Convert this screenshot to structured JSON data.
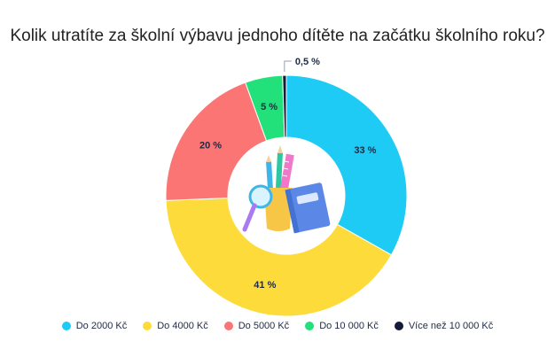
{
  "chart_data": {
    "type": "pie",
    "title": "Kolik utratíte za školní výbavu jednoho dítěte na začátku školního roku?",
    "donut": true,
    "categories": [
      "Do 2000 Kč",
      "Do 4000 Kč",
      "Do 5000 Kč",
      "Do 10 000 Kč",
      "Více než 10 000 Kč"
    ],
    "values": [
      33,
      41,
      20,
      5,
      0.5
    ],
    "data_labels": [
      "33 %",
      "41 %",
      "20 %",
      "5 %",
      "0,5 %"
    ],
    "colors": [
      "#1dcbf5",
      "#fddb3a",
      "#fb7575",
      "#22e07a",
      "#141a3a"
    ],
    "legend": "bottom",
    "center_image": "school-supplies-cup-with-pencils-ruler-magnifier-and-book"
  }
}
